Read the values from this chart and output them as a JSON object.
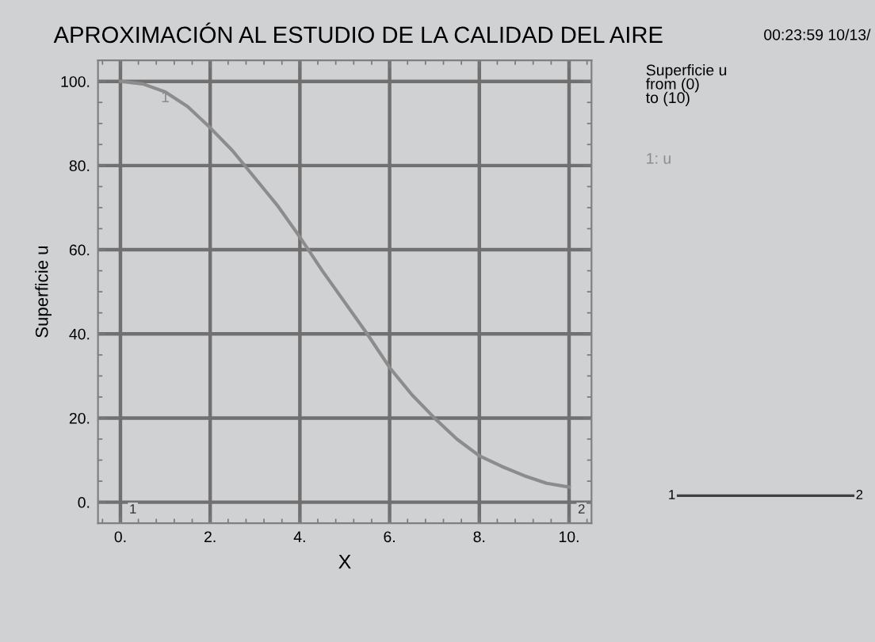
{
  "chart_data": {
    "type": "line",
    "title": "APROXIMACIÓN AL ESTUDIO DE LA CALIDAD DEL AIRE",
    "xlabel": "X",
    "ylabel": "Superficie u",
    "x": [
      0,
      0.5,
      1,
      1.5,
      2,
      2.5,
      3,
      3.5,
      4,
      4.5,
      5,
      5.5,
      6,
      6.5,
      7,
      7.5,
      8,
      8.5,
      9,
      9.5,
      10
    ],
    "series": [
      {
        "name": "1: u",
        "color": "#8c8c8c",
        "values": [
          100,
          99.4,
          97.5,
          94,
          89,
          83.5,
          77,
          70.5,
          63,
          55,
          47.5,
          40,
          32,
          25.5,
          20,
          15,
          11,
          8.5,
          6.3,
          4.5,
          3.6
        ]
      }
    ],
    "xlim": [
      -0.5,
      10.5
    ],
    "ylim": [
      -5,
      105
    ],
    "xticks": [
      {
        "value": 0,
        "label": "0."
      },
      {
        "value": 2,
        "label": "2."
      },
      {
        "value": 4,
        "label": "4."
      },
      {
        "value": 6,
        "label": "6."
      },
      {
        "value": 8,
        "label": "8."
      },
      {
        "value": 10,
        "label": "10."
      }
    ],
    "yticks": [
      {
        "value": 0,
        "label": "0."
      },
      {
        "value": 20,
        "label": "20."
      },
      {
        "value": 40,
        "label": "40."
      },
      {
        "value": 60,
        "label": "60."
      },
      {
        "value": 80,
        "label": "80."
      },
      {
        "value": 100,
        "label": "100."
      }
    ],
    "grid": true,
    "legend": false,
    "marker": "none",
    "line_style": "solid",
    "annotations": [
      {
        "text": "1",
        "x": 1,
        "y": 96
      },
      "1",
      "2",
      "Superficie u\nfrom (0)\nto (10)",
      "00:23:59 10/13/",
      "1",
      "2"
    ]
  }
}
